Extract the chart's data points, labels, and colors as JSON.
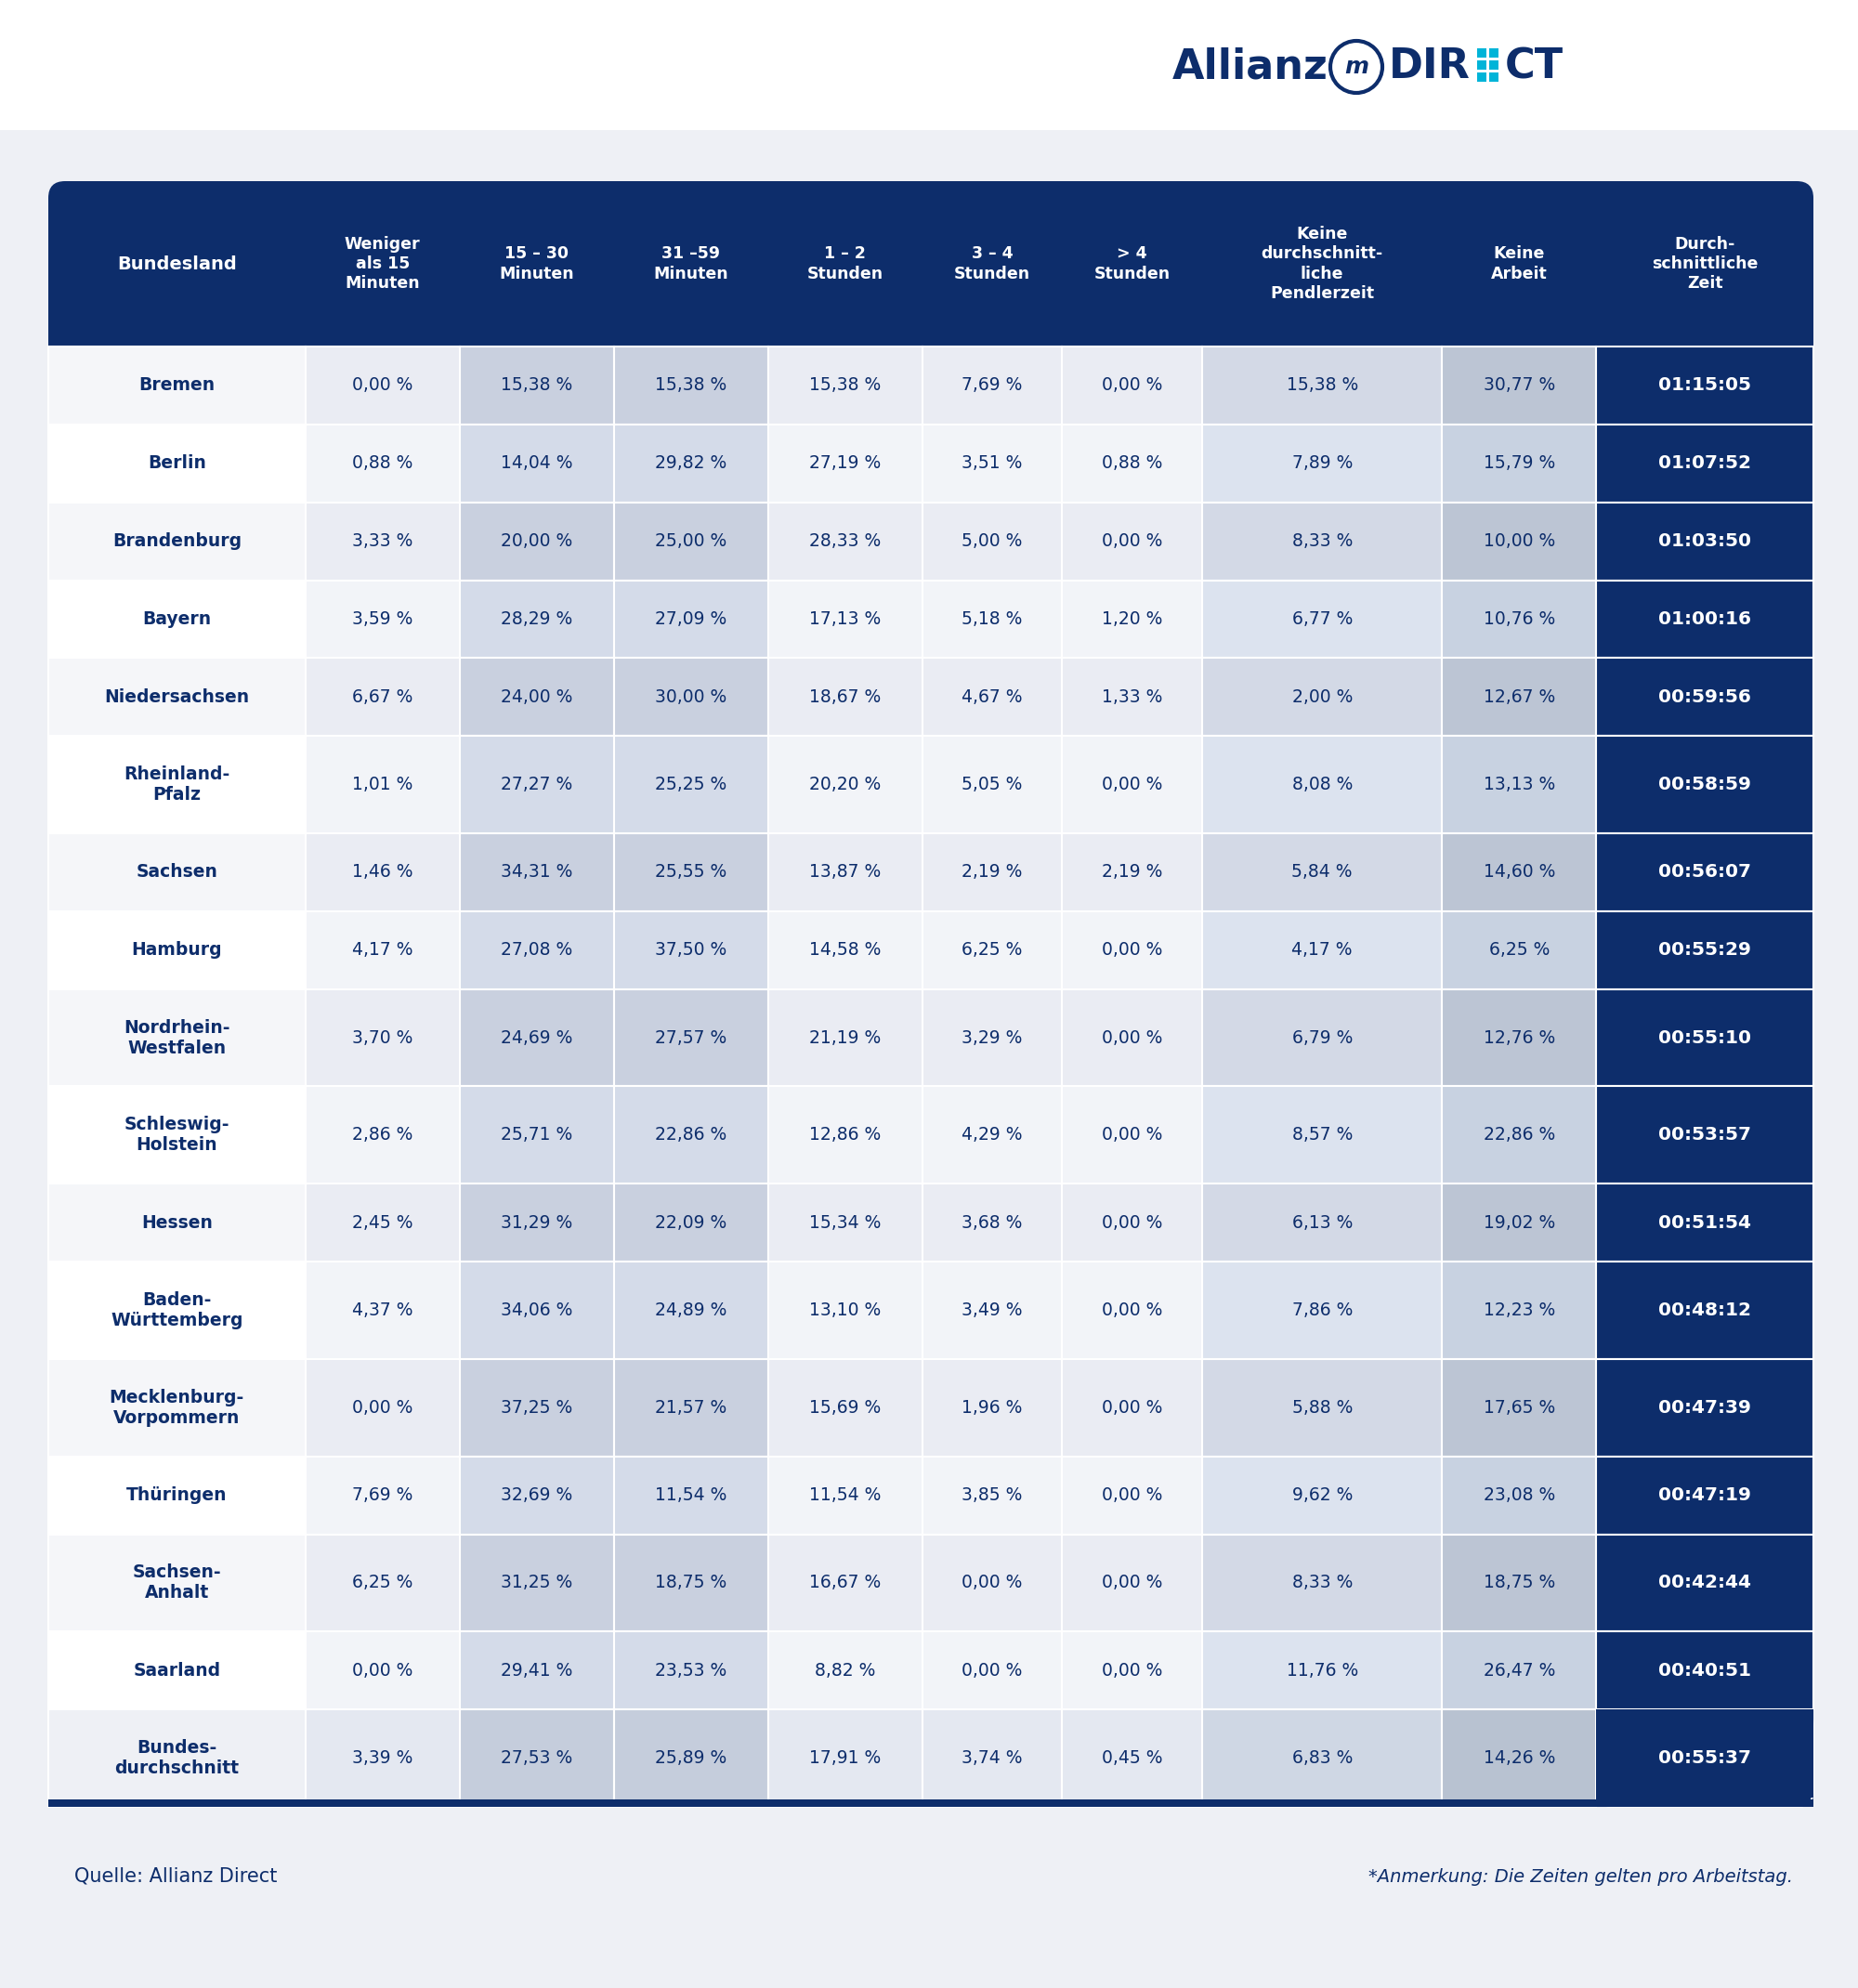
{
  "headers": [
    "Bundesland",
    "Weniger\nals 15\nMinuten",
    "15 – 30\nMinuten",
    "31 –59\nMinuten",
    "1 – 2\nStunden",
    "3 – 4\nStunden",
    "> 4\nStunden",
    "Keine\ndurchschnitt-\nliche\nPendlerzeit",
    "Keine\nArbeit",
    "Durch-\nschnittliche\nZeit"
  ],
  "rows": [
    [
      "Bremen",
      "0,00 %",
      "15,38 %",
      "15,38 %",
      "15,38 %",
      "7,69 %",
      "0,00 %",
      "15,38 %",
      "30,77 %",
      "01:15:05"
    ],
    [
      "Berlin",
      "0,88 %",
      "14,04 %",
      "29,82 %",
      "27,19 %",
      "3,51 %",
      "0,88 %",
      "7,89 %",
      "15,79 %",
      "01:07:52"
    ],
    [
      "Brandenburg",
      "3,33 %",
      "20,00 %",
      "25,00 %",
      "28,33 %",
      "5,00 %",
      "0,00 %",
      "8,33 %",
      "10,00 %",
      "01:03:50"
    ],
    [
      "Bayern",
      "3,59 %",
      "28,29 %",
      "27,09 %",
      "17,13 %",
      "5,18 %",
      "1,20 %",
      "6,77 %",
      "10,76 %",
      "01:00:16"
    ],
    [
      "Niedersachsen",
      "6,67 %",
      "24,00 %",
      "30,00 %",
      "18,67 %",
      "4,67 %",
      "1,33 %",
      "2,00 %",
      "12,67 %",
      "00:59:56"
    ],
    [
      "Rheinland-\nPfalz",
      "1,01 %",
      "27,27 %",
      "25,25 %",
      "20,20 %",
      "5,05 %",
      "0,00 %",
      "8,08 %",
      "13,13 %",
      "00:58:59"
    ],
    [
      "Sachsen",
      "1,46 %",
      "34,31 %",
      "25,55 %",
      "13,87 %",
      "2,19 %",
      "2,19 %",
      "5,84 %",
      "14,60 %",
      "00:56:07"
    ],
    [
      "Hamburg",
      "4,17 %",
      "27,08 %",
      "37,50 %",
      "14,58 %",
      "6,25 %",
      "0,00 %",
      "4,17 %",
      "6,25 %",
      "00:55:29"
    ],
    [
      "Nordrhein-\nWestfalen",
      "3,70 %",
      "24,69 %",
      "27,57 %",
      "21,19 %",
      "3,29 %",
      "0,00 %",
      "6,79 %",
      "12,76 %",
      "00:55:10"
    ],
    [
      "Schleswig-\nHolstein",
      "2,86 %",
      "25,71 %",
      "22,86 %",
      "12,86 %",
      "4,29 %",
      "0,00 %",
      "8,57 %",
      "22,86 %",
      "00:53:57"
    ],
    [
      "Hessen",
      "2,45 %",
      "31,29 %",
      "22,09 %",
      "15,34 %",
      "3,68 %",
      "0,00 %",
      "6,13 %",
      "19,02 %",
      "00:51:54"
    ],
    [
      "Baden-\nWürttemberg",
      "4,37 %",
      "34,06 %",
      "24,89 %",
      "13,10 %",
      "3,49 %",
      "0,00 %",
      "7,86 %",
      "12,23 %",
      "00:48:12"
    ],
    [
      "Mecklenburg-\nVorpommern",
      "0,00 %",
      "37,25 %",
      "21,57 %",
      "15,69 %",
      "1,96 %",
      "0,00 %",
      "5,88 %",
      "17,65 %",
      "00:47:39"
    ],
    [
      "Thüringen",
      "7,69 %",
      "32,69 %",
      "11,54 %",
      "11,54 %",
      "3,85 %",
      "0,00 %",
      "9,62 %",
      "23,08 %",
      "00:47:19"
    ],
    [
      "Sachsen-\nAnhalt",
      "6,25 %",
      "31,25 %",
      "18,75 %",
      "16,67 %",
      "0,00 %",
      "0,00 %",
      "8,33 %",
      "18,75 %",
      "00:42:44"
    ],
    [
      "Saarland",
      "0,00 %",
      "29,41 %",
      "23,53 %",
      "8,82 %",
      "0,00 %",
      "0,00 %",
      "11,76 %",
      "26,47 %",
      "00:40:51"
    ],
    [
      "Bundes-\ndurchschnitt",
      "3,39 %",
      "27,53 %",
      "25,89 %",
      "17,91 %",
      "3,74 %",
      "0,45 %",
      "6,83 %",
      "14,26 %",
      "00:55:37"
    ]
  ],
  "header_bg": "#0d2d6b",
  "header_text": "#ffffff",
  "last_col_bg": "#0d2d6b",
  "last_col_text": "#ffffff",
  "border_color": "#ffffff",
  "footer_left": "Quelle: Allianz Direct",
  "footer_right": "*Anmerkung: Die Zeiten gelten pro Arbeitstag.",
  "background_color": "#eef0f5",
  "logo_bg": "#ffffff",
  "col_colors_even": [
    "#f5f6f9",
    "#eaecf3",
    "#c9d0df",
    "#c9d0df",
    "#eaecf3",
    "#eaecf3",
    "#eaecf3",
    "#d3d9e6",
    "#bcc5d4",
    "#0d2d6b"
  ],
  "col_colors_odd": [
    "#ffffff",
    "#f2f4f8",
    "#d4dbe9",
    "#d4dbe9",
    "#f2f4f8",
    "#f2f4f8",
    "#f2f4f8",
    "#dce3ef",
    "#c8d2e1",
    "#0d2d6b"
  ],
  "col_colors_last_row": [
    "#eef0f5",
    "#e4e8f1",
    "#c5cddc",
    "#c5cddc",
    "#e4e8f1",
    "#e4e8f1",
    "#e4e8f1",
    "#cfd7e4",
    "#b8c2d1",
    "#0d2d6b"
  ]
}
